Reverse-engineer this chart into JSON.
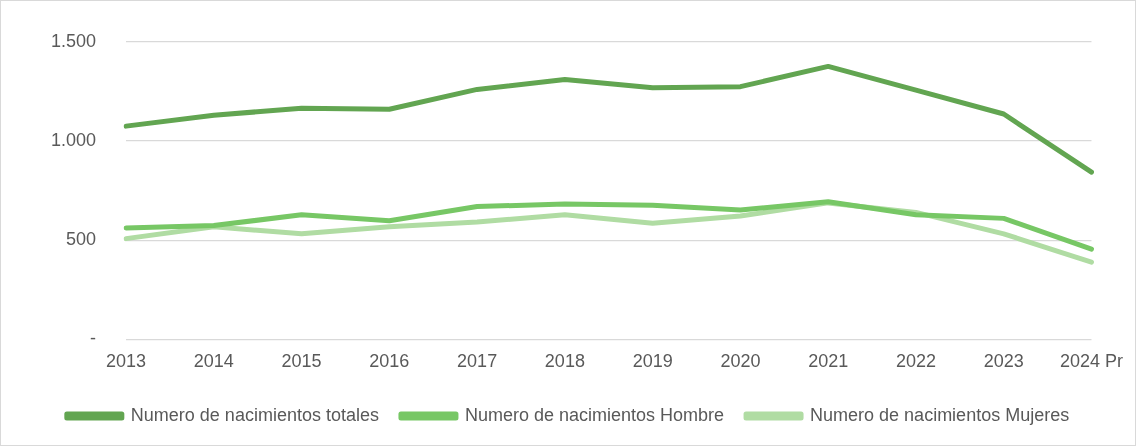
{
  "chart_data": {
    "type": "line",
    "categories": [
      "2013",
      "2014",
      "2015",
      "2016",
      "2017",
      "2018",
      "2019",
      "2020",
      "2021",
      "2022",
      "2023",
      "2024 Pr"
    ],
    "series": [
      {
        "name": "Numero de nacimientos totales",
        "color": "#62a551",
        "values": [
          1075,
          1130,
          1165,
          1160,
          1260,
          1310,
          1268,
          1274,
          1376,
          1256,
          1136,
          843
        ]
      },
      {
        "name": "Numero de nacimientos Hombre",
        "color": "#77c765",
        "values": [
          562,
          574,
          628,
          598,
          670,
          682,
          676,
          652,
          694,
          628,
          610,
          455
        ]
      },
      {
        "name": "Numero de nacimientos Mujeres",
        "color": "#b0dca3",
        "values": [
          508,
          568,
          532,
          568,
          592,
          628,
          586,
          622,
          688,
          640,
          532,
          389
        ]
      }
    ],
    "ylim": [
      0,
      1500
    ],
    "yticks": [
      {
        "value": 0,
        "label": "-"
      },
      {
        "value": 500,
        "label": "500"
      },
      {
        "value": 1000,
        "label": "1.000"
      },
      {
        "value": 1500,
        "label": "1.500"
      }
    ],
    "grid": "y",
    "legend": "bottom",
    "marker": "none",
    "line_style": "solid"
  }
}
